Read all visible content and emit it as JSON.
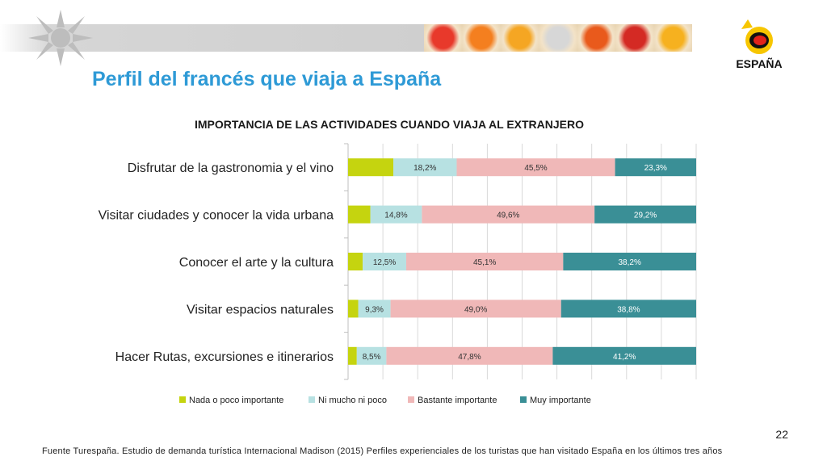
{
  "header": {
    "title": "Perfil del francés que viaja a España",
    "logo_text": "ESPAÑA",
    "banner_colors": [
      "#e8392b",
      "#f47f1f",
      "#f5a623",
      "#d7d7d7",
      "#e95a1c",
      "#d42a24",
      "#f6b11f"
    ]
  },
  "chart_data": {
    "type": "bar",
    "orientation": "horizontal",
    "stacked": true,
    "percent_stacked": true,
    "title": "IMPORTANCIA DE LAS ACTIVIDADES CUANDO VIAJA AL EXTRANJERO",
    "categories": [
      "Disfrutar de la gastronomia y el vino",
      "Visitar ciudades y conocer la vida urbana",
      "Conocer el arte y la cultura",
      "Visitar espacios naturales",
      "Hacer Rutas, excursiones e itinerarios"
    ],
    "series": [
      {
        "name": "Nada o poco importante",
        "color": "#c5d40f",
        "values": [
          13.0,
          6.4,
          4.2,
          2.9,
          2.5
        ],
        "labels": [
          "",
          "",
          "",
          "",
          ""
        ]
      },
      {
        "name": "Ni mucho ni poco",
        "color": "#b7e1e2",
        "values": [
          18.2,
          14.8,
          12.5,
          9.3,
          8.5
        ],
        "labels": [
          "18,2%",
          "14,8%",
          "12,5%",
          "9,3%",
          "8,5%"
        ]
      },
      {
        "name": "Bastante importante",
        "color": "#f0b8b8",
        "values": [
          45.5,
          49.6,
          45.1,
          49.0,
          47.8
        ],
        "labels": [
          "45,5%",
          "49,6%",
          "45,1%",
          "49,0%",
          "47,8%"
        ]
      },
      {
        "name": "Muy importante",
        "color": "#3a8f96",
        "values": [
          23.3,
          29.2,
          38.2,
          38.8,
          41.2
        ],
        "labels": [
          "23,3%",
          "29,2%",
          "38,2%",
          "38,8%",
          "41,2%"
        ]
      }
    ],
    "xlim": [
      0,
      100
    ],
    "grid": true,
    "legend": "bottom"
  },
  "page_number": "22",
  "footer": "Fuente Turespaña. Estudio de demanda turística Internacional Madison (2015) Perfiles experienciales de los turistas que han visitado España en los últimos tres años"
}
